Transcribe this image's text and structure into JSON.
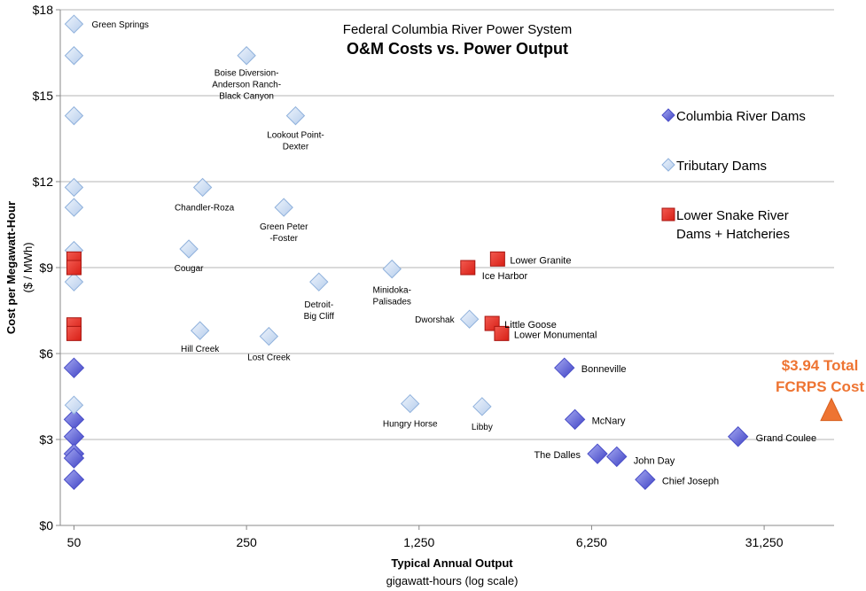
{
  "chart_data": {
    "type": "scatter",
    "title": "Federal Columbia River Power System",
    "subtitle": "O&M Costs vs. Power Output",
    "xlabel": "Typical Annual Output",
    "xlabel_sub": "gigawatt-hours (log scale)",
    "ylabel": "Cost per Megawatt-Hour",
    "ylabel_sub": "($ / MWh)",
    "x_scale": "log",
    "xlim": [
      44,
      60000
    ],
    "ylim": [
      0,
      18
    ],
    "x_ticks": [
      50,
      250,
      1250,
      6250,
      31250
    ],
    "x_tick_labels": [
      "50",
      "250",
      "1,250",
      "6,250",
      "31,250"
    ],
    "y_ticks": [
      0,
      3,
      6,
      9,
      12,
      15,
      18
    ],
    "y_tick_labels": [
      "$0",
      "$3",
      "$6",
      "$9",
      "$12",
      "$15",
      "$18"
    ],
    "grid": "horizontal",
    "legend_position": "right",
    "series": [
      {
        "name": "Columbia River Dams",
        "marker": "diamond",
        "color": "#5a5fd6",
        "points": [
          {
            "x": 50,
            "y": 5.5,
            "label": ""
          },
          {
            "x": 50,
            "y": 3.7,
            "label": ""
          },
          {
            "x": 50,
            "y": 3.1,
            "label": ""
          },
          {
            "x": 50,
            "y": 2.5,
            "label": ""
          },
          {
            "x": 50,
            "y": 2.35,
            "label": ""
          },
          {
            "x": 50,
            "y": 1.6,
            "label": ""
          },
          {
            "x": 4850,
            "y": 5.5,
            "label": "Bonneville"
          },
          {
            "x": 5350,
            "y": 3.7,
            "label": "McNary"
          },
          {
            "x": 6600,
            "y": 2.5,
            "label": "The Dalles"
          },
          {
            "x": 7900,
            "y": 2.4,
            "label": "John Day"
          },
          {
            "x": 10300,
            "y": 1.6,
            "label": "Chief Joseph"
          },
          {
            "x": 24500,
            "y": 3.1,
            "label": "Grand Coulee"
          }
        ]
      },
      {
        "name": "Tributary Dams",
        "marker": "diamond",
        "color": "#c9dcf2",
        "points": [
          {
            "x": 50,
            "y": 17.5,
            "label": "Green Springs"
          },
          {
            "x": 50,
            "y": 16.4,
            "label": ""
          },
          {
            "x": 50,
            "y": 14.3,
            "label": ""
          },
          {
            "x": 50,
            "y": 11.8,
            "label": ""
          },
          {
            "x": 50,
            "y": 11.1,
            "label": ""
          },
          {
            "x": 50,
            "y": 9.6,
            "label": ""
          },
          {
            "x": 50,
            "y": 8.5,
            "label": ""
          },
          {
            "x": 50,
            "y": 4.2,
            "label": ""
          },
          {
            "x": 250,
            "y": 16.4,
            "label": "Boise Diversion-\nAnderson Ranch-\nBlack Canyon"
          },
          {
            "x": 395,
            "y": 14.3,
            "label": "Lookout Point-\nDexter"
          },
          {
            "x": 166,
            "y": 11.8,
            "label": "Chandler-Roza"
          },
          {
            "x": 354,
            "y": 11.1,
            "label": "Green Peter\n-Foster"
          },
          {
            "x": 146,
            "y": 9.65,
            "label": "Cougar"
          },
          {
            "x": 491,
            "y": 8.5,
            "label": "Detroit-\nBig Cliff"
          },
          {
            "x": 971,
            "y": 8.95,
            "label": "Minidoka-\nPalisades"
          },
          {
            "x": 2000,
            "y": 7.2,
            "label": "Dworshak"
          },
          {
            "x": 162,
            "y": 6.8,
            "label": "Hill Creek"
          },
          {
            "x": 308,
            "y": 6.6,
            "label": "Lost Creek"
          },
          {
            "x": 1150,
            "y": 4.25,
            "label": "Hungry Horse"
          },
          {
            "x": 2250,
            "y": 4.15,
            "label": "Libby"
          }
        ]
      },
      {
        "name": "Lower Snake River Dams + Hatcheries",
        "marker": "square",
        "color": "#e8322a",
        "points": [
          {
            "x": 50,
            "y": 9.3,
            "label": ""
          },
          {
            "x": 50,
            "y": 9.0,
            "label": ""
          },
          {
            "x": 50,
            "y": 7.0,
            "label": ""
          },
          {
            "x": 50,
            "y": 6.7,
            "label": ""
          },
          {
            "x": 1970,
            "y": 9.0,
            "label": "Ice Harbor"
          },
          {
            "x": 2600,
            "y": 9.3,
            "label": "Lower Granite"
          },
          {
            "x": 2470,
            "y": 7.05,
            "label": "Little Goose"
          },
          {
            "x": 2700,
            "y": 6.7,
            "label": "Lower Monumental"
          }
        ]
      }
    ],
    "annotation": {
      "text_line1": "$3.94 Total",
      "text_line2": "FCRPS Cost",
      "marker": "triangle",
      "color": "#ee7432",
      "x": 50000,
      "y": 3.94
    }
  }
}
